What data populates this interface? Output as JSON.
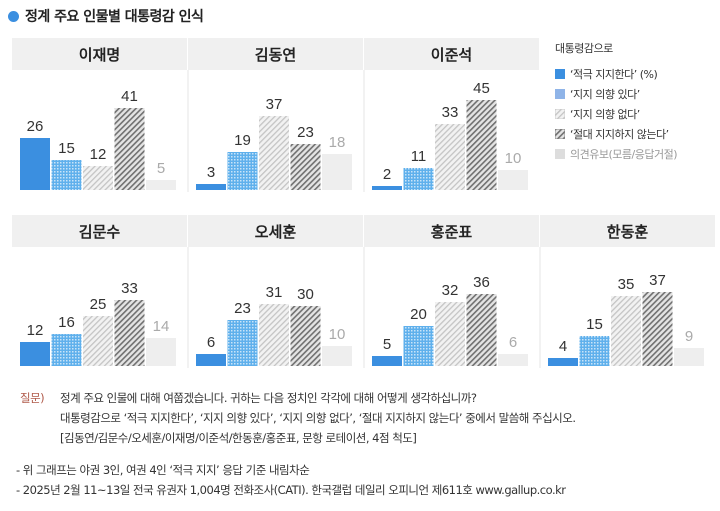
{
  "title": "정계 주요 인물별 대통령감 인식",
  "colors": {
    "accent": "#3b8fe0",
    "strong_support": "#3b8fe0",
    "some_support": "#8ec6f0",
    "not_inclined": "#d8d8d8",
    "never": "#8a8a8a",
    "undecided": "#eeeeee"
  },
  "legend": {
    "title": "대통령감으로",
    "items": [
      "‘적극 지지한다’ (%)",
      "‘지지 의향 있다’",
      "‘지지 의향 없다’",
      "‘절대 지지하지 않는다’",
      "의견유보(모름/응답거절)"
    ]
  },
  "chart_data": {
    "type": "bar",
    "title": "정계 주요 인물별 대통령감 인식",
    "categories": [
      "‘적극 지지한다’",
      "‘지지 의향 있다’",
      "‘지지 의향 없다’",
      "‘절대 지지하지 않는다’",
      "의견유보(모름/응답거절)"
    ],
    "unit": "%",
    "panels": [
      {
        "name": "이재명",
        "values": [
          26,
          15,
          12,
          41,
          5
        ]
      },
      {
        "name": "김동연",
        "values": [
          3,
          19,
          37,
          23,
          18
        ]
      },
      {
        "name": "이준석",
        "values": [
          2,
          11,
          33,
          45,
          10
        ]
      },
      {
        "name": "김문수",
        "values": [
          12,
          16,
          25,
          33,
          14
        ]
      },
      {
        "name": "오세훈",
        "values": [
          6,
          23,
          31,
          30,
          10
        ]
      },
      {
        "name": "홍준표",
        "values": [
          5,
          20,
          32,
          36,
          6
        ]
      },
      {
        "name": "한동훈",
        "values": [
          4,
          15,
          35,
          37,
          9
        ]
      }
    ]
  },
  "question": {
    "label": "질문)",
    "lines": [
      "정계 주요 인물에 대해 여쭙겠습니다. 귀하는 다음 정치인 각각에 대해 어떻게 생각하십니까?",
      "대통령감으로 ‘적극 지지한다’, ‘지지 의향 있다’, ‘지지 의향 없다’, ‘절대 지지하지 않는다’ 중에서 말씀해 주십시오.",
      "[김동연/김문수/오세훈/이재명/이준석/한동훈/홍준표, 문항 로테이션, 4점 척도]"
    ]
  },
  "notes": [
    "- 위 그래프는 야권 3인, 여권 4인 ‘적극 지지’ 응답 기준 내림차순",
    "- 2025년 2월 11~13일 전국 유권자 1,004명 전화조사(CATI). 한국갤럽 데일리 오피니언 제611호 www.gallup.co.kr"
  ]
}
